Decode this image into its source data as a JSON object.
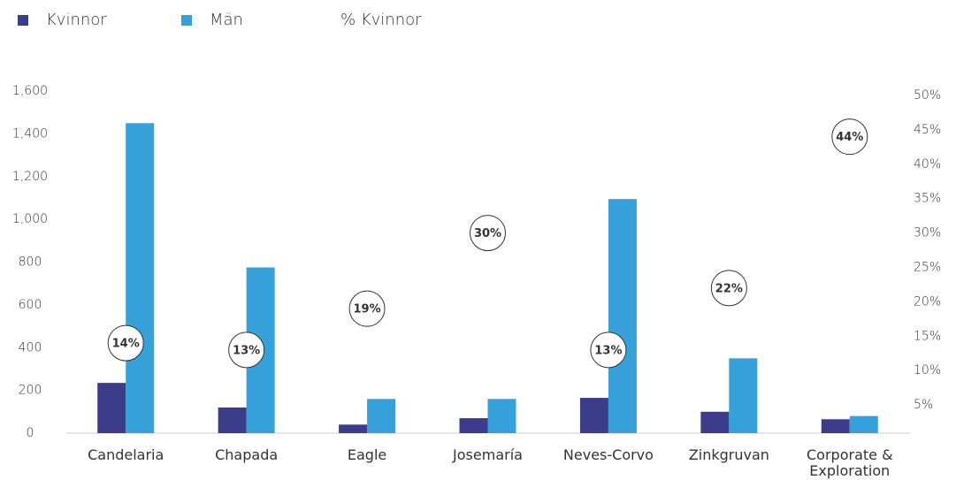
{
  "chart_data": {
    "type": "bar",
    "categories": [
      "Candelaria",
      "Chapada",
      "Eagle",
      "Josemaría",
      "Neves-Corvo",
      "Zinkgruvan",
      "Corporate & Exploration"
    ],
    "series": [
      {
        "name": "Kvinnor",
        "color": "#3b3d8a",
        "values": [
          235,
          120,
          40,
          70,
          165,
          100,
          65
        ]
      },
      {
        "name": "Män",
        "color": "#36a0db",
        "values": [
          1450,
          775,
          160,
          160,
          1095,
          350,
          80
        ]
      },
      {
        "name": "% Kvinnor",
        "color": "#ffffff",
        "axis": "y2",
        "values": [
          14,
          13,
          19,
          30,
          13,
          22,
          44
        ],
        "value_labels": [
          "14%",
          "13%",
          "19%",
          "30%",
          "13%",
          "22%",
          "44%"
        ]
      }
    ],
    "ylim": [
      0,
      1600
    ],
    "yticks": [
      0,
      200,
      400,
      600,
      800,
      {
        "value": 1000,
        "label": "1,000"
      },
      {
        "value": 1200,
        "label": "1,200"
      },
      {
        "value": 1400,
        "label": "1,400"
      },
      {
        "value": 1600,
        "label": "1,600"
      }
    ],
    "y2lim": [
      0,
      50
    ],
    "y2ticks": [
      {
        "value": 5,
        "label": "5%"
      },
      {
        "value": 10,
        "label": "10%"
      },
      {
        "value": 15,
        "label": "15%"
      },
      {
        "value": 20,
        "label": "20%"
      },
      {
        "value": 25,
        "label": "25%"
      },
      {
        "value": 30,
        "label": "30%"
      },
      {
        "value": 35,
        "label": "35%"
      },
      {
        "value": 40,
        "label": "40%"
      },
      {
        "value": 45,
        "label": "45%"
      },
      {
        "value": 50,
        "label": "50%"
      }
    ],
    "grid": false,
    "legend": "top-left"
  }
}
